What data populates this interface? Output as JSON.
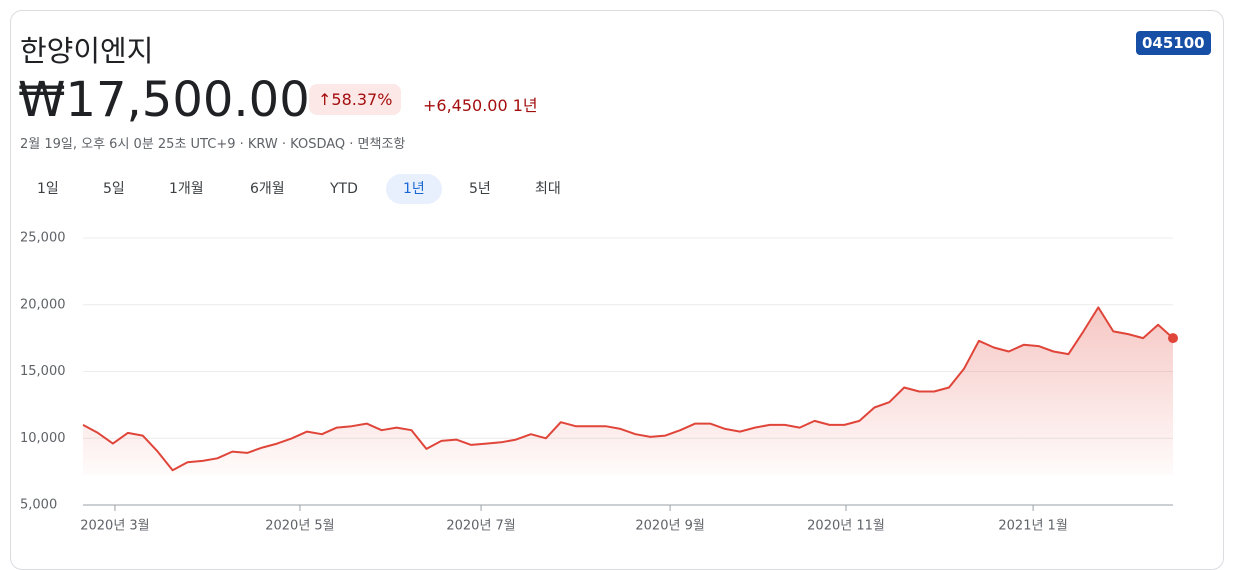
{
  "header": {
    "title": "한양이엔지",
    "ticker": "045100",
    "price": "₩17,500.00",
    "change_pct": "58.37%",
    "change_abs": "+6,450.00 1년",
    "meta": "2월 19일, 오후 6시 0분 25초 UTC+9 · KRW · KOSDAQ · 면책조항"
  },
  "tabs": {
    "items": [
      "1일",
      "5일",
      "1개월",
      "6개월",
      "YTD",
      "1년",
      "5년",
      "최대"
    ],
    "selected": 5
  },
  "chart_data": {
    "type": "line",
    "color": "#e0453a",
    "grid": true,
    "values": [
      11000,
      10400,
      9600,
      10400,
      10200,
      9000,
      7600,
      8200,
      8300,
      8500,
      9000,
      8900,
      9300,
      9600,
      10000,
      10500,
      10300,
      10800,
      10900,
      11100,
      10600,
      10800,
      10600,
      9200,
      9800,
      9900,
      9500,
      9600,
      9700,
      9900,
      10300,
      10000,
      11200,
      10900,
      10900,
      10900,
      10700,
      10300,
      10100,
      10200,
      10600,
      11100,
      11100,
      10700,
      10500,
      10800,
      11000,
      11000,
      10800,
      11300,
      11000,
      11000,
      11300,
      12300,
      12700,
      13800,
      13500,
      13500,
      13800,
      15200,
      17300,
      16800,
      16500,
      17000,
      16900,
      16500,
      16300,
      18000,
      19800,
      18000,
      17800,
      17500,
      18500,
      17500
    ],
    "xlim": [
      0,
      73
    ],
    "xticks": [
      {
        "value": 2.14,
        "label": "2020년 3월"
      },
      {
        "value": 14.53,
        "label": "2020년 5월"
      },
      {
        "value": 26.66,
        "label": "2020년 7월"
      },
      {
        "value": 39.32,
        "label": "2020년 9월"
      },
      {
        "value": 51.1,
        "label": "2020년 11월"
      },
      {
        "value": 63.63,
        "label": "2021년 1월"
      }
    ],
    "ylim": [
      5000,
      25000
    ],
    "yticks": [
      {
        "value": 5000,
        "label": "5,000"
      },
      {
        "value": 10000,
        "label": "10,000"
      },
      {
        "value": 15000,
        "label": "15,000"
      },
      {
        "value": 20000,
        "label": "20,000"
      },
      {
        "value": 25000,
        "label": "25,000"
      }
    ]
  }
}
